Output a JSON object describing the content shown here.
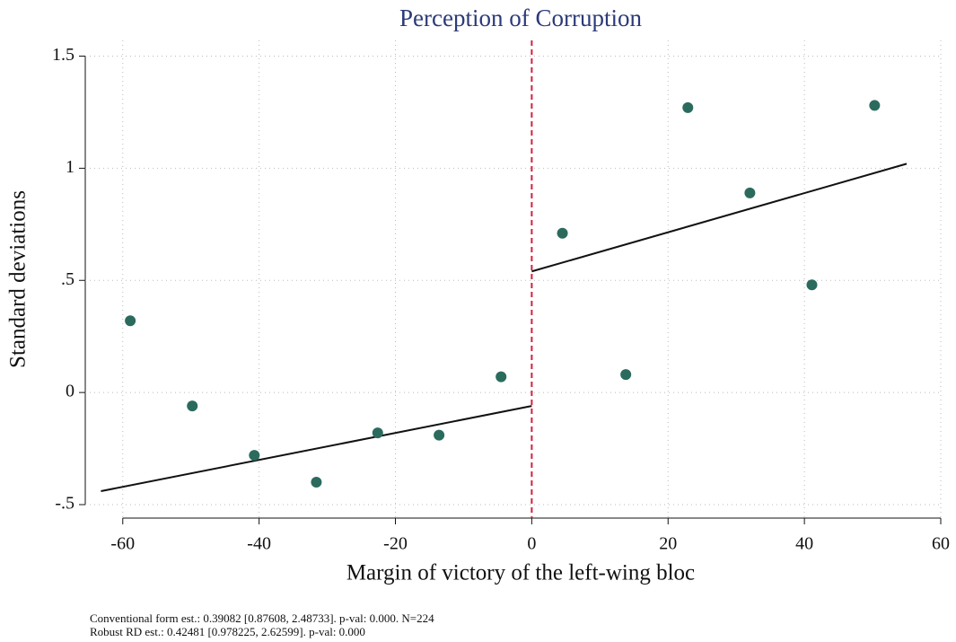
{
  "chart_data": {
    "type": "scatter",
    "title": "Perception of Corruption",
    "x_label": "Margin of victory of the left-wing bloc",
    "y_label": "Standard deviations",
    "xlim": [
      -65.5,
      60
    ],
    "ylim": [
      -0.56,
      1.57
    ],
    "xticks": [
      -60,
      -40,
      -20,
      0,
      20,
      40,
      60
    ],
    "yticks": [
      {
        "value": -0.5,
        "label": "-.5"
      },
      0,
      {
        "value": 0.5,
        "label": ".5"
      },
      1,
      1.5
    ],
    "grid": true,
    "series": [
      {
        "color": "#2b6b5e",
        "x": [
          -58.9,
          -49.8,
          -40.7,
          -31.6,
          -22.6,
          -13.6,
          -4.5,
          4.5,
          13.8,
          22.9,
          32.0,
          41.1,
          50.3
        ],
        "values": [
          0.32,
          -0.06,
          -0.28,
          -0.4,
          -0.18,
          -0.19,
          0.07,
          0.71,
          0.08,
          1.27,
          0.89,
          0.48,
          1.28
        ]
      }
    ],
    "fit_lines": [
      {
        "color": "#111111",
        "x": [
          -63.2,
          0
        ],
        "values": [
          -0.44,
          -0.06
        ]
      },
      {
        "color": "#111111",
        "x": [
          0,
          55.0
        ],
        "values": [
          0.54,
          1.02
        ]
      }
    ],
    "cutoff": 0,
    "cutoff_color": "#d3203c",
    "notes": [
      "Conventional form est.: 0.39082 [0.87608, 2.48733]. p-val: 0.000. N=224",
      "Robust RD est.: 0.42481 [0.978225, 2.62599]. p-val: 0.000"
    ]
  }
}
